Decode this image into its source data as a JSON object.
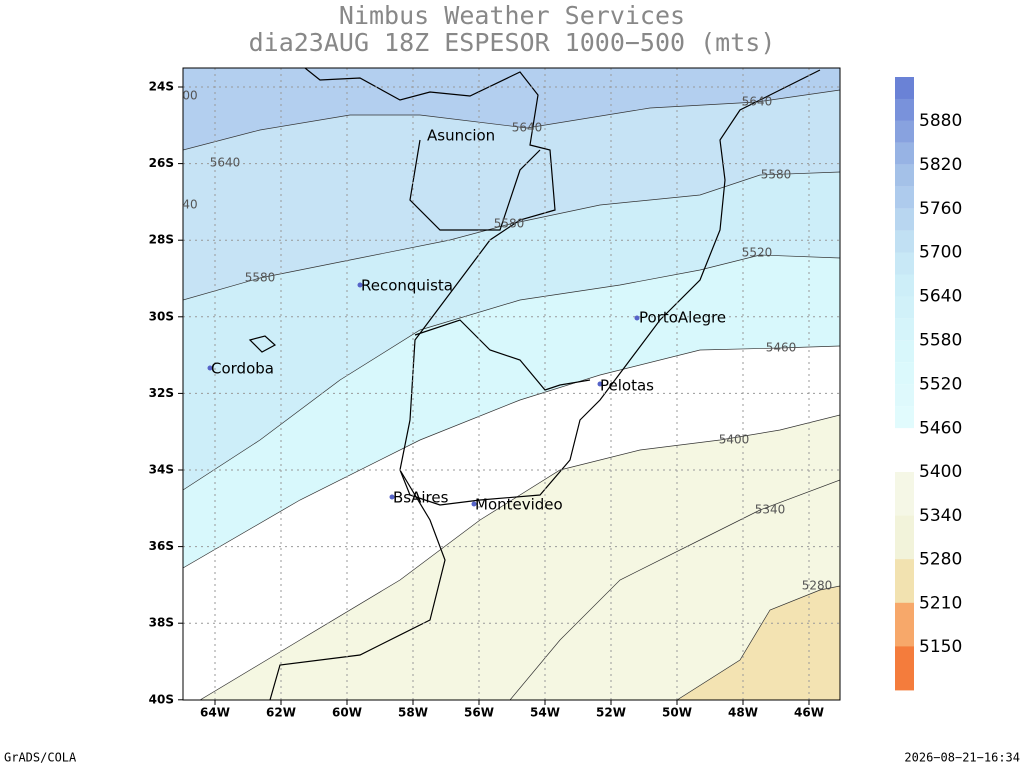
{
  "title": [
    "Nimbus Weather Services",
    "dia23AUG 18Z ESPESOR 1000−500 (mts)"
  ],
  "lat_labels": [
    "24S",
    "26S",
    "28S",
    "30S",
    "32S",
    "34S",
    "36S",
    "38S",
    "40S"
  ],
  "lon_labels": [
    "64W",
    "62W",
    "60W",
    "58W",
    "56W",
    "54W",
    "52W",
    "50W",
    "48W",
    "46W"
  ],
  "cities": [
    "Asuncion",
    "Reconquista",
    "PortoAlegre",
    "Cordoba",
    "Pelotas",
    "BsAires",
    "Montevideo"
  ],
  "contour_labels": [
    "00",
    "5640",
    "40",
    "5640",
    "5640",
    "5580",
    "5580",
    "5580",
    "5520",
    "5460",
    "5400",
    "5340",
    "5280"
  ],
  "colorbar": {
    "upper": [
      "5880",
      "5820",
      "5760",
      "5700",
      "5640",
      "5580",
      "5520",
      "5460"
    ],
    "lower": [
      "5400",
      "5340",
      "5280",
      "5210",
      "5150"
    ]
  },
  "footer": {
    "left": "GrADS/COLA",
    "right": "2026−08−21−16:34"
  }
}
